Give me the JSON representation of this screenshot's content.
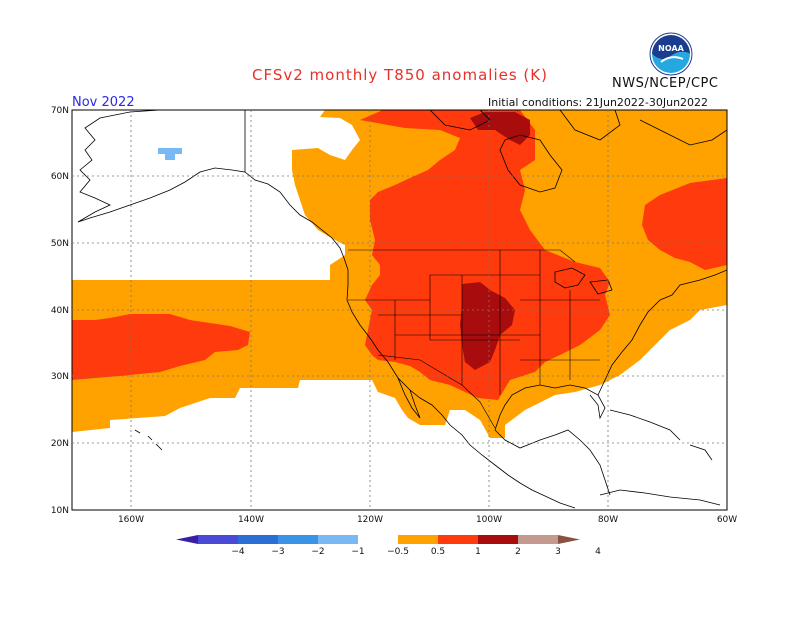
{
  "header": {
    "title": "CFSv2 monthly T850 anomalies (K)",
    "agency": "NWS/NCEP/CPC",
    "month": "Nov 2022",
    "initial_conditions": "Initial conditions: 21Jun2022-30Jun2022",
    "logo_text": "NOAA"
  },
  "axes": {
    "lat_labels": [
      "70N",
      "60N",
      "50N",
      "40N",
      "30N",
      "20N",
      "10N"
    ],
    "lon_labels": [
      "160W",
      "140W",
      "120W",
      "100W",
      "80W",
      "60W"
    ]
  },
  "colorbar": {
    "labels": [
      "−4",
      "−3",
      "−2",
      "−1",
      "−0.5",
      "0.5",
      "1",
      "2",
      "3",
      "4"
    ],
    "colors": [
      "#3a1fa3",
      "#4a4ad6",
      "#2a6fd6",
      "#3b93e8",
      "#7ab8f3",
      "#ffffff",
      "#ffa200",
      "#ff3a0c",
      "#a80c0c",
      "#c49a90",
      "#8a5040"
    ]
  },
  "map": {
    "color_light_orange": "#ffa200",
    "color_red_orange": "#ff3a0c",
    "color_dark_red": "#a80c0c",
    "color_light_blue": "#7ab8f3"
  }
}
